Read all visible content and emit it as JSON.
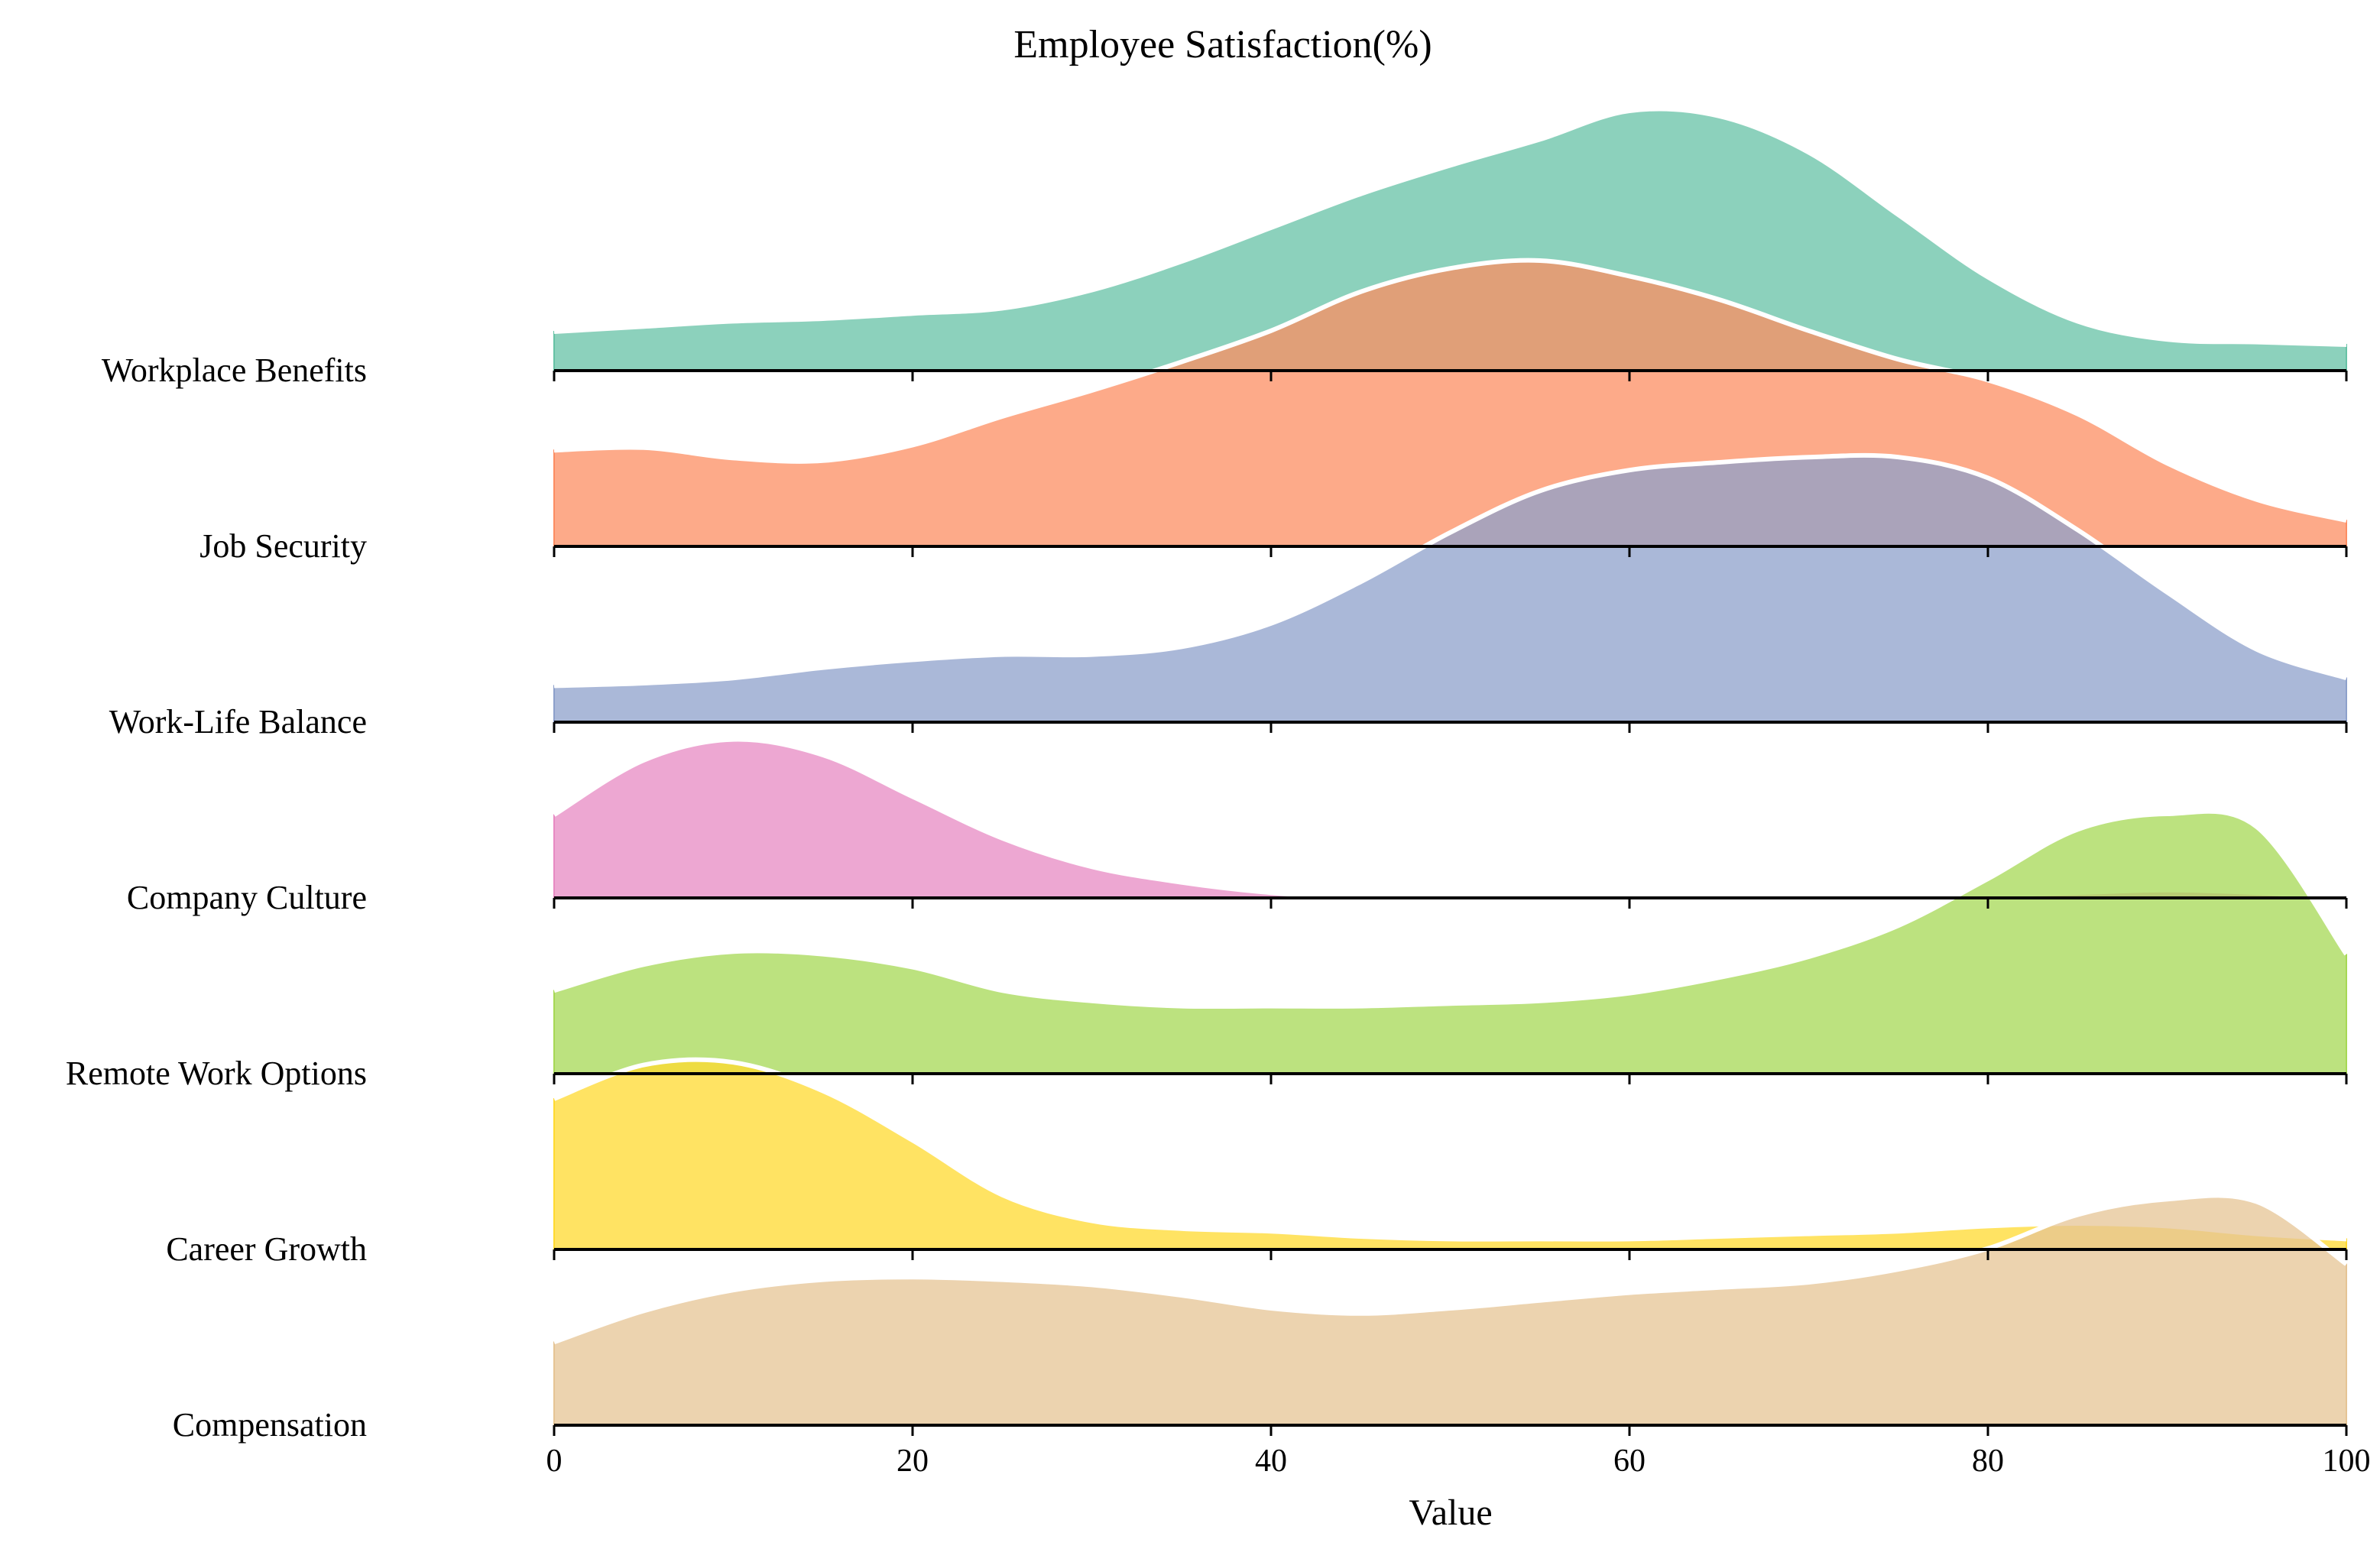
{
  "chart_data": {
    "type": "area",
    "subtype": "ridgeline",
    "title": "Employee Satisfaction(%)",
    "xlabel": "Value",
    "ylabel": "",
    "xlim": [
      0,
      100
    ],
    "xticks": [
      0,
      20,
      40,
      60,
      80,
      100
    ],
    "grid": false,
    "legend": "none",
    "x": [
      0,
      5,
      10,
      15,
      20,
      25,
      30,
      35,
      40,
      45,
      50,
      55,
      60,
      65,
      70,
      75,
      80,
      85,
      90,
      95,
      100
    ],
    "series": [
      {
        "name": "Workplace Benefits",
        "color": "#66c2a5",
        "values": [
          0.15,
          0.17,
          0.19,
          0.2,
          0.22,
          0.24,
          0.31,
          0.42,
          0.55,
          0.68,
          0.79,
          0.89,
          1.0,
          0.98,
          0.84,
          0.6,
          0.36,
          0.19,
          0.12,
          0.11,
          0.1
        ]
      },
      {
        "name": "Job Security",
        "color": "#fc8d62",
        "values": [
          0.37,
          0.38,
          0.34,
          0.33,
          0.39,
          0.5,
          0.6,
          0.71,
          0.83,
          0.98,
          1.07,
          1.1,
          1.04,
          0.95,
          0.83,
          0.72,
          0.64,
          0.51,
          0.32,
          0.18,
          0.1
        ]
      },
      {
        "name": "Work-Life Balance",
        "color": "#8da0cb",
        "values": [
          0.14,
          0.15,
          0.17,
          0.21,
          0.24,
          0.26,
          0.26,
          0.29,
          0.38,
          0.54,
          0.73,
          0.89,
          0.97,
          1.0,
          1.02,
          1.02,
          0.94,
          0.74,
          0.5,
          0.28,
          0.17
        ]
      },
      {
        "name": "Company Culture",
        "color": "#e78ac3",
        "values": [
          0.32,
          0.53,
          0.61,
          0.55,
          0.39,
          0.23,
          0.12,
          0.06,
          0.02,
          0.0,
          0.0,
          0.0,
          0.0,
          0.0,
          0.0,
          0.0,
          0.01,
          0.02,
          0.03,
          0.02,
          0.0
        ]
      },
      {
        "name": "Remote Work Options",
        "color": "#a6d854",
        "values": [
          0.32,
          0.42,
          0.47,
          0.46,
          0.41,
          0.32,
          0.28,
          0.26,
          0.26,
          0.26,
          0.27,
          0.28,
          0.31,
          0.37,
          0.45,
          0.57,
          0.75,
          0.94,
          1.0,
          0.95,
          0.46
        ]
      },
      {
        "name": "Career Growth",
        "color": "#ffd92f",
        "values": [
          0.58,
          0.71,
          0.72,
          0.61,
          0.42,
          0.21,
          0.11,
          0.08,
          0.07,
          0.05,
          0.04,
          0.04,
          0.04,
          0.05,
          0.06,
          0.07,
          0.09,
          0.1,
          0.09,
          0.06,
          0.04
        ]
      },
      {
        "name": "Compensation",
        "color": "#e5c494",
        "values": [
          0.32,
          0.44,
          0.52,
          0.56,
          0.57,
          0.56,
          0.54,
          0.5,
          0.45,
          0.43,
          0.45,
          0.48,
          0.51,
          0.53,
          0.55,
          0.6,
          0.68,
          0.81,
          0.87,
          0.86,
          0.62
        ]
      }
    ]
  }
}
